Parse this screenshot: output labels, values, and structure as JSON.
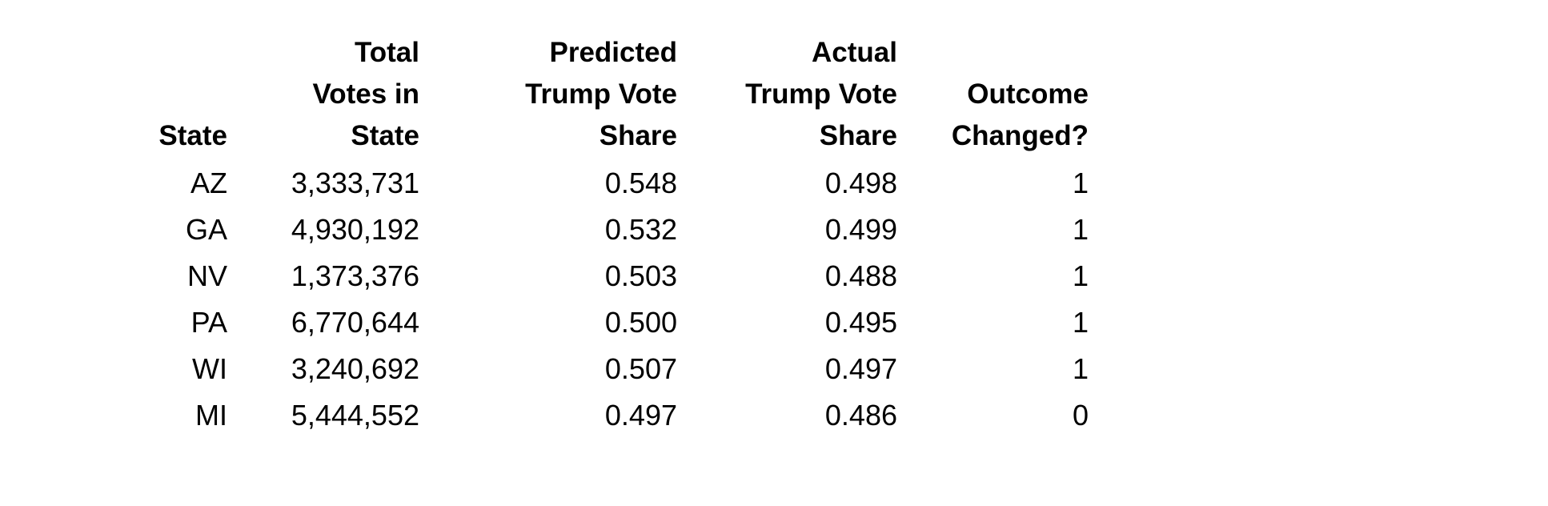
{
  "table": {
    "headers": [
      [
        "State"
      ],
      [
        "Total",
        "Votes in",
        "State"
      ],
      [
        "Predicted",
        "Trump Vote",
        "Share"
      ],
      [
        "Actual",
        "Trump Vote",
        "Share"
      ],
      [
        "Outcome",
        "Changed?"
      ]
    ],
    "rows": [
      [
        "AZ",
        "3,333,731",
        "0.548",
        "0.498",
        "1"
      ],
      [
        "GA",
        "4,930,192",
        "0.532",
        "0.499",
        "1"
      ],
      [
        "NV",
        "1,373,376",
        "0.503",
        "0.488",
        "1"
      ],
      [
        "PA",
        "6,770,644",
        "0.500",
        "0.495",
        "1"
      ],
      [
        "WI",
        "3,240,692",
        "0.507",
        "0.497",
        "1"
      ],
      [
        "MI",
        "5,444,552",
        "0.497",
        "0.486",
        "0"
      ]
    ]
  }
}
